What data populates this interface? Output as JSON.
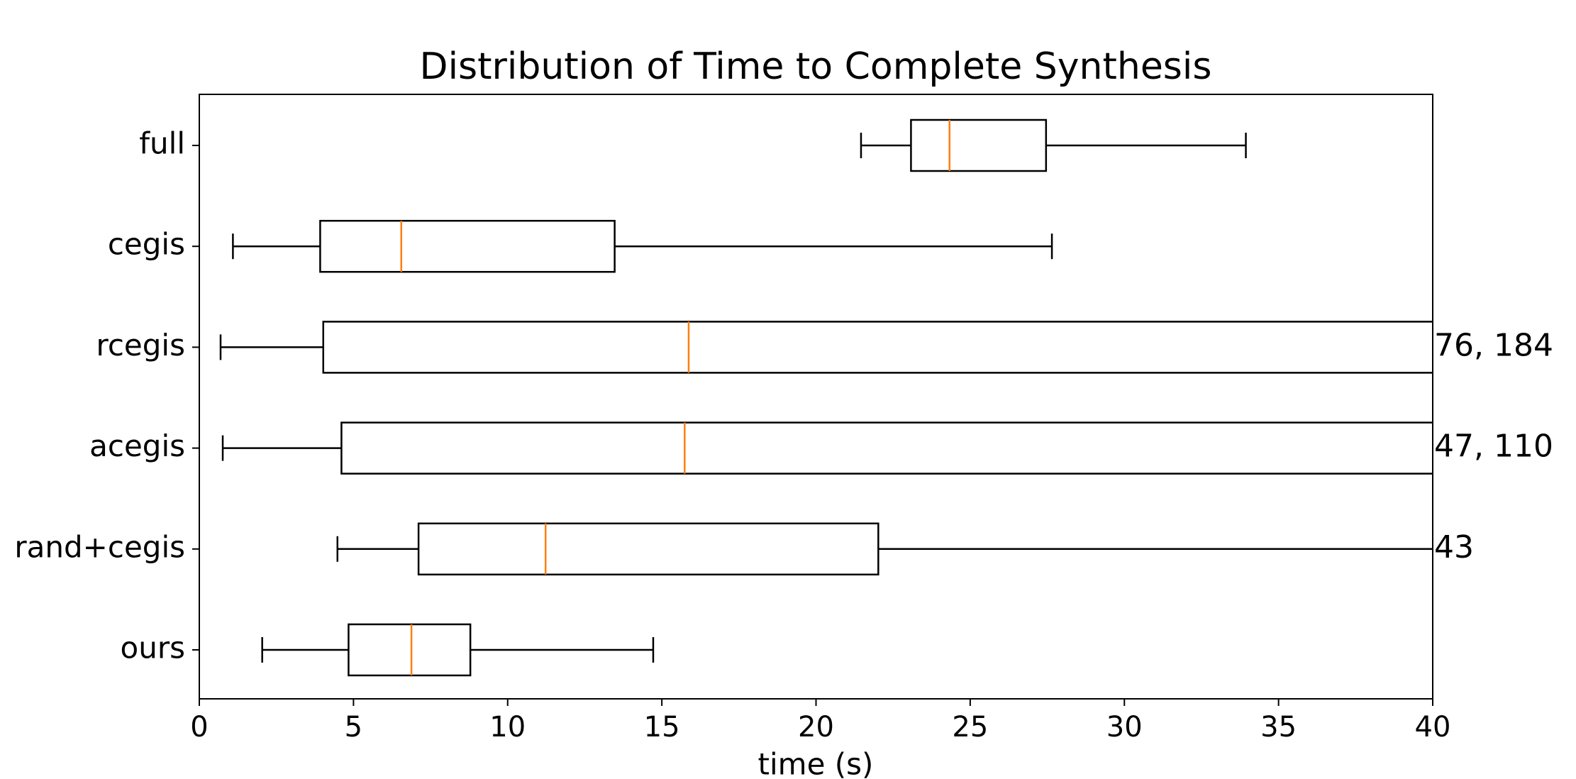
{
  "chart_data": {
    "type": "boxplot",
    "title": "Distribution of Time to Complete Synthesis",
    "xlabel": "time (s)",
    "categories": [
      "full",
      "cegis",
      "rcegis",
      "acegis",
      "rand+cegis",
      "ours"
    ],
    "boxes": [
      {
        "whislo": 21.46,
        "q1": 23.08,
        "med": 24.33,
        "q3": 27.46,
        "whishi": 33.94
      },
      {
        "whislo": 1.09,
        "q1": 3.92,
        "med": 6.55,
        "q3": 13.47,
        "whishi": 27.65
      },
      {
        "whislo": 0.69,
        "q1": 4.02,
        "med": 15.87,
        "q3": 76,
        "whishi": 184
      },
      {
        "whislo": 0.76,
        "q1": 4.61,
        "med": 15.74,
        "q3": 47,
        "whishi": 110
      },
      {
        "whislo": 4.48,
        "q1": 7.11,
        "med": 11.23,
        "q3": 22.02,
        "whishi": 43
      },
      {
        "whislo": 2.04,
        "q1": 4.84,
        "med": 6.88,
        "q3": 8.79,
        "whishi": 14.72
      }
    ],
    "value_labels": [
      null,
      null,
      "76, 184",
      "47, 110",
      "43",
      null
    ],
    "box_color": "#000000",
    "median_color": "#ff7f0e",
    "xlim": [
      0,
      40
    ],
    "xticks": [
      0,
      5,
      10,
      15,
      20,
      25,
      30,
      35,
      40
    ]
  }
}
